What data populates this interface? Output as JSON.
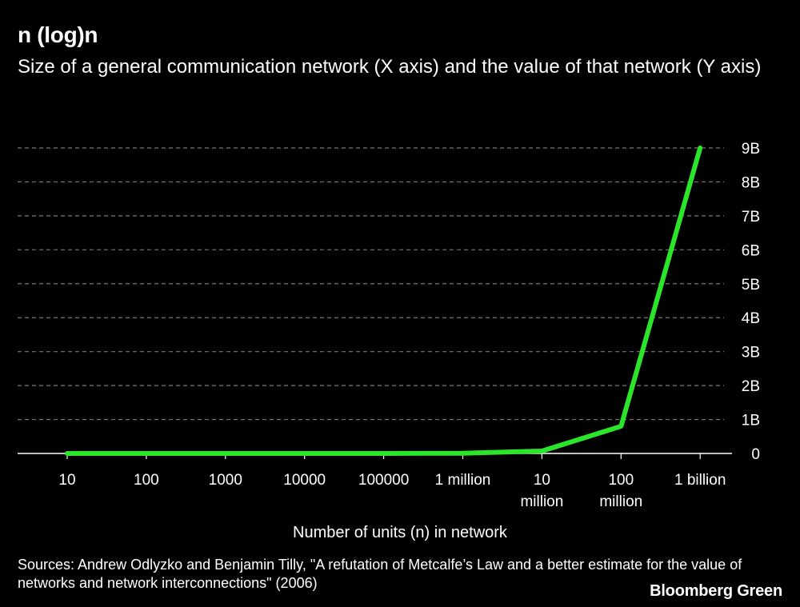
{
  "header": {
    "title": "n (log)n",
    "subtitle": "Size of a general communication network (X axis) and the value of that network (Y axis)"
  },
  "chart_data": {
    "type": "line",
    "title": "n (log)n",
    "subtitle": "Size of a general communication network (X axis) and the value of that network (Y axis)",
    "xlabel": "Number of units (n) in network",
    "ylabel": "",
    "categories": [
      "10",
      "100",
      "1000",
      "10000",
      "100000",
      "1 million",
      "10 million",
      "100 million",
      "1 billion"
    ],
    "series": [
      {
        "values": [
          10,
          200,
          3000,
          40000,
          500000,
          6000000,
          70000000,
          800000000,
          9000000000
        ]
      }
    ],
    "yticks": [
      "0",
      "1B",
      "2B",
      "3B",
      "4B",
      "5B",
      "6B",
      "7B",
      "8B",
      "9B"
    ],
    "ylim": [
      0,
      9000000000
    ],
    "grid": true,
    "line_color": "#2be52b",
    "yaxis_side": "right"
  },
  "footer": {
    "source": "Sources: Andrew Odlyzko and Benjamin Tilly, \"A refutation of Metcalfe’s Law and a better estimate for the value of networks and network interconnections\" (2006)",
    "brand": "Bloomberg Green"
  }
}
